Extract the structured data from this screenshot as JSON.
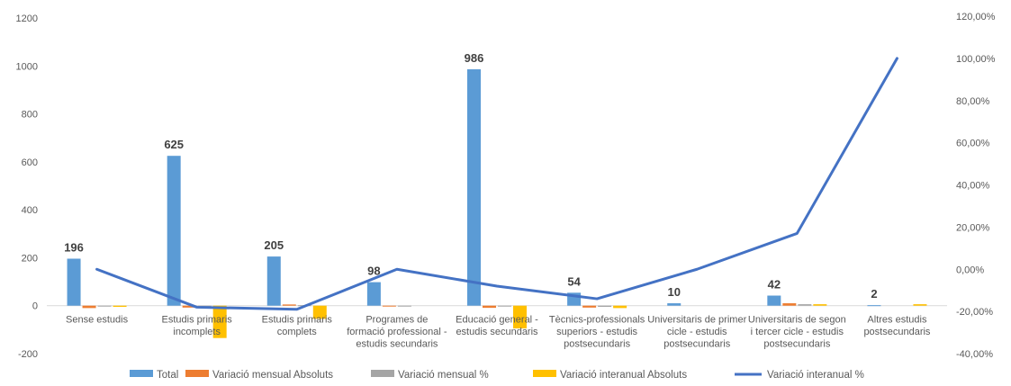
{
  "chart_data": {
    "type": "bar",
    "categories": [
      [
        "Sense estudis"
      ],
      [
        "Estudis primaris",
        "incomplets"
      ],
      [
        "Estudis primaris",
        "complets"
      ],
      [
        "Programes de",
        "formació professional -",
        "estudis secundaris"
      ],
      [
        "Educació general -",
        "estudis secundaris"
      ],
      [
        "Tècnics-professionals",
        "superiors - estudis",
        "postsecundaris"
      ],
      [
        "Universitaris de primer",
        "cicle - estudis",
        "postsecundaris"
      ],
      [
        "Universitaris de segon",
        "i tercer cicle - estudis",
        "postsecundaris"
      ],
      [
        "Altres estudis",
        "postsecundaris"
      ]
    ],
    "series": [
      {
        "name": "Total",
        "type": "bar",
        "axis": "left",
        "color": "#5B9BD5",
        "values": [
          196,
          625,
          205,
          98,
          986,
          54,
          10,
          42,
          2
        ]
      },
      {
        "name": "Variació mensual  Absoluts",
        "type": "bar",
        "axis": "left",
        "color": "#ED7D31",
        "values": [
          -10,
          -8,
          5,
          -3,
          -9,
          -8,
          0,
          10,
          0
        ]
      },
      {
        "name": "Variació mensual  %",
        "type": "bar",
        "axis": "left",
        "color": "#A5A5A5",
        "values": [
          -2,
          -1,
          2,
          -3,
          -1,
          -5,
          0,
          6,
          0
        ]
      },
      {
        "name": "Variació interanual  Absoluts",
        "type": "bar",
        "axis": "left",
        "color": "#FFC000",
        "values": [
          -5,
          -135,
          -55,
          0,
          -95,
          -10,
          0,
          6,
          6
        ]
      },
      {
        "name": "Variació interanual  %",
        "type": "line",
        "axis": "right",
        "color": "#4472C4",
        "values": [
          0.0,
          -18.0,
          -19.0,
          0.0,
          -8.0,
          -14.0,
          0.0,
          17.0,
          100.0
        ]
      }
    ],
    "data_labels": [
      "196",
      "625",
      "205",
      "98",
      "986",
      "54",
      "10",
      "42",
      "2"
    ],
    "left_axis": {
      "min": -200,
      "max": 1200,
      "step": 200,
      "tick_labels": [
        "-200",
        "0",
        "200",
        "400",
        "600",
        "800",
        "1000",
        "1200"
      ]
    },
    "right_axis": {
      "min": -40,
      "max": 120,
      "step": 20,
      "tick_labels": [
        "-40,00%",
        "-20,00%",
        "0,00%",
        "20,00%",
        "40,00%",
        "60,00%",
        "80,00%",
        "100,00%",
        "120,00%"
      ]
    },
    "grid": false,
    "legend_position": "bottom"
  }
}
